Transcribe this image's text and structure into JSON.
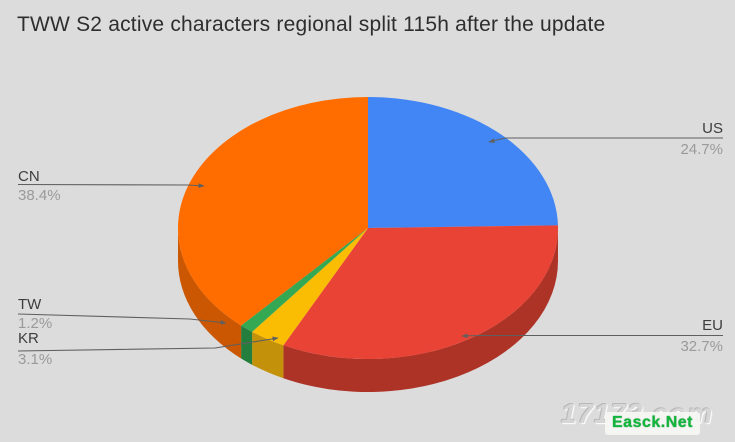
{
  "title": "TWW S2 active characters regional split 115h after the update",
  "chart_data": {
    "type": "pie",
    "is_3d": true,
    "title": "TWW S2 active characters regional split 115h after the update",
    "categories": [
      "US",
      "EU",
      "KR",
      "TW",
      "CN"
    ],
    "values": [
      24.7,
      32.7,
      3.1,
      1.2,
      38.4
    ],
    "unit": "%",
    "direction": "clockwise",
    "start_angle_deg": 0,
    "legend_position": "callout-labels",
    "slices": [
      {
        "label": "US",
        "value": 24.7,
        "pct_label": "24.7%",
        "color": "#4285F4",
        "side_color": "#2F64B5"
      },
      {
        "label": "EU",
        "value": 32.7,
        "pct_label": "32.7%",
        "color": "#E94335",
        "side_color": "#AE3327"
      },
      {
        "label": "KR",
        "value": 3.1,
        "pct_label": "3.1%",
        "color": "#FBBC04",
        "side_color": "#C4920A"
      },
      {
        "label": "TW",
        "value": 1.2,
        "pct_label": "1.2%",
        "color": "#34A853",
        "side_color": "#247E3D"
      },
      {
        "label": "CN",
        "value": 38.4,
        "pct_label": "38.4%",
        "color": "#FF6D01",
        "side_color": "#CC5702"
      }
    ]
  },
  "watermark": {
    "site": "17173.com",
    "overlay": "Easck.Net",
    "overlay_color": "#12B53C"
  },
  "colors": {
    "background": "#DCDCDC",
    "title_text": "#2E2E2E",
    "label_text": "#3D3D3D",
    "pct_text": "#9A9A9A",
    "leader_line": "#5F5F5F"
  }
}
